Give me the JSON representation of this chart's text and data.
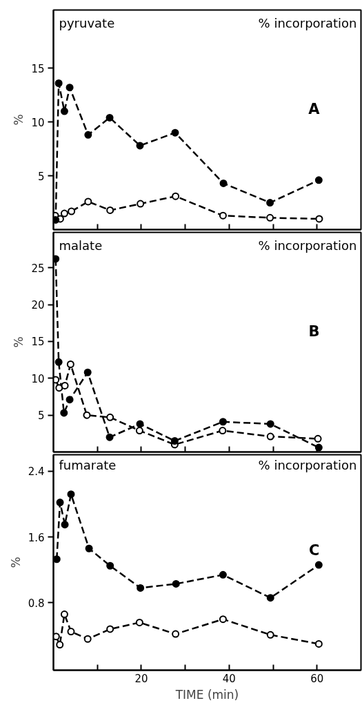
{
  "chart_data": [
    {
      "type": "line",
      "ylabel": "%",
      "annotations": [
        "pyruvate",
        "% incorporation",
        "A"
      ],
      "xlim": [
        0,
        70
      ],
      "xticks": [
        10,
        20,
        30,
        40,
        50,
        60
      ],
      "ylim": [
        0,
        20.4
      ],
      "yticks": [
        5,
        10,
        15
      ],
      "tick_labels": "y",
      "grid": false,
      "marker": "circle",
      "line_style": "dashed",
      "series": [
        {
          "color": "#000000",
          "x": [
            0.5,
            1.2,
            2.5,
            3.7,
            7.9,
            12.8,
            19.7,
            27.7,
            38.7,
            49.3,
            60.4
          ],
          "values": [
            0.9,
            13.6,
            11.0,
            13.2,
            8.8,
            10.4,
            7.8,
            9.0,
            4.3,
            2.5,
            4.6
          ]
        },
        {
          "color": "#000000",
          "colors": [
            "#ffffff",
            "#ffffff",
            "#ffffff",
            "#ffffff",
            "#ffffff",
            "#ffffff",
            "#ffffff",
            "#ffffff",
            "#ffffff",
            "#ffffff",
            "#ffffff"
          ],
          "x": [
            0.4,
            1.55,
            2.5,
            4.1,
            7.9,
            12.9,
            19.8,
            27.8,
            38.6,
            49.3,
            60.5
          ],
          "values": [
            1.3,
            1.0,
            1.5,
            1.7,
            2.6,
            1.8,
            2.4,
            3.1,
            1.3,
            1.1,
            1.0
          ]
        }
      ]
    },
    {
      "type": "line",
      "ylabel": "%",
      "annotations": [
        "malate",
        "% incorporation",
        "B"
      ],
      "xlim": [
        0,
        70
      ],
      "xticks": [
        10,
        20,
        30,
        40,
        50,
        60
      ],
      "ylim": [
        0,
        29.8
      ],
      "yticks": [
        5,
        10,
        15,
        20,
        25
      ],
      "tick_labels": "y",
      "grid": false,
      "marker": "circle",
      "line_style": "dashed",
      "series": [
        {
          "color": "#000000",
          "x": [
            0.5,
            1.2,
            2.4,
            3.7,
            7.8,
            12.8,
            19.7,
            27.6,
            38.6,
            49.4,
            60.4
          ],
          "values": [
            26.2,
            12.2,
            5.3,
            7.1,
            10.8,
            2.0,
            3.8,
            1.5,
            4.1,
            3.8,
            0.6
          ]
        },
        {
          "color": "#000000",
          "colors": [
            "#ffffff",
            "#ffffff",
            "#ffffff",
            "#ffffff",
            "#ffffff",
            "#ffffff",
            "#ffffff",
            "#ffffff",
            "#ffffff",
            "#ffffff",
            "#ffffff"
          ],
          "x": [
            0.5,
            1.3,
            2.6,
            3.9,
            7.6,
            12.9,
            19.6,
            27.6,
            38.5,
            49.4,
            60.2
          ],
          "values": [
            9.8,
            8.7,
            9.0,
            11.9,
            5.0,
            4.7,
            2.9,
            1.0,
            2.9,
            2.1,
            1.8
          ]
        }
      ]
    },
    {
      "type": "line",
      "ylabel": "%",
      "xlabel": "TIME (min)",
      "annotations": [
        "fumarate",
        "% incorporation",
        "C"
      ],
      "xlim": [
        0,
        70
      ],
      "xticks": [
        {
          "value": 10,
          "label": null
        },
        20,
        {
          "value": 30,
          "label": null
        },
        40,
        {
          "value": 50,
          "label": null
        },
        60
      ],
      "ylim": [
        -0.02,
        2.6
      ],
      "yticks": [
        0.8,
        1.6,
        2.4
      ],
      "grid": false,
      "marker": "circle",
      "line_style": "dashed",
      "series": [
        {
          "color": "#000000",
          "x": [
            0.75,
            1.5,
            2.6,
            4.0,
            8.1,
            12.9,
            19.8,
            27.9,
            38.6,
            49.4,
            60.4
          ],
          "values": [
            1.33,
            2.02,
            1.75,
            2.12,
            1.46,
            1.25,
            0.98,
            1.03,
            1.14,
            0.86,
            1.26
          ]
        },
        {
          "color": "#000000",
          "colors": [
            "#ffffff",
            "#ffffff",
            "#ffffff",
            "#ffffff",
            "#ffffff",
            "#ffffff",
            "#ffffff",
            "#ffffff",
            "#ffffff",
            "#ffffff",
            "#ffffff"
          ],
          "x": [
            0.6,
            1.45,
            2.5,
            4.0,
            7.8,
            12.9,
            19.6,
            27.8,
            38.6,
            49.4,
            60.4
          ],
          "values": [
            0.39,
            0.29,
            0.66,
            0.45,
            0.36,
            0.48,
            0.56,
            0.42,
            0.6,
            0.41,
            0.3
          ]
        }
      ]
    }
  ]
}
